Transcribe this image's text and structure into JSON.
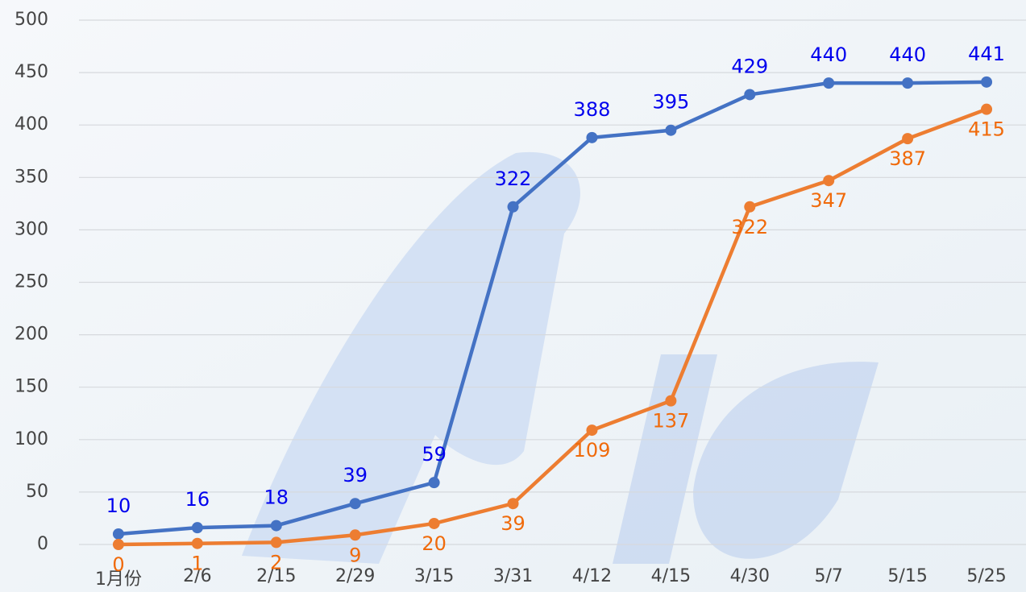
{
  "chart_data": {
    "type": "line",
    "categories": [
      "1月份",
      "2/6",
      "2/15",
      "2/29",
      "3/15",
      "3/31",
      "4/12",
      "4/15",
      "4/30",
      "5/7",
      "5/15",
      "5/25"
    ],
    "series": [
      {
        "color": "#4472c4",
        "label_color": "#0000ee",
        "values": [
          10,
          16,
          18,
          39,
          59,
          322,
          388,
          395,
          429,
          440,
          440,
          441
        ]
      },
      {
        "color": "#ed7d31",
        "label_color": "#f06a0a",
        "values": [
          0,
          1,
          2,
          9,
          20,
          39,
          109,
          137,
          322,
          347,
          387,
          415
        ]
      }
    ],
    "ylim": [
      0,
      500
    ],
    "yticks": [
      0,
      50,
      100,
      150,
      200,
      250,
      300,
      350,
      400,
      450,
      500
    ],
    "grid": true
  }
}
